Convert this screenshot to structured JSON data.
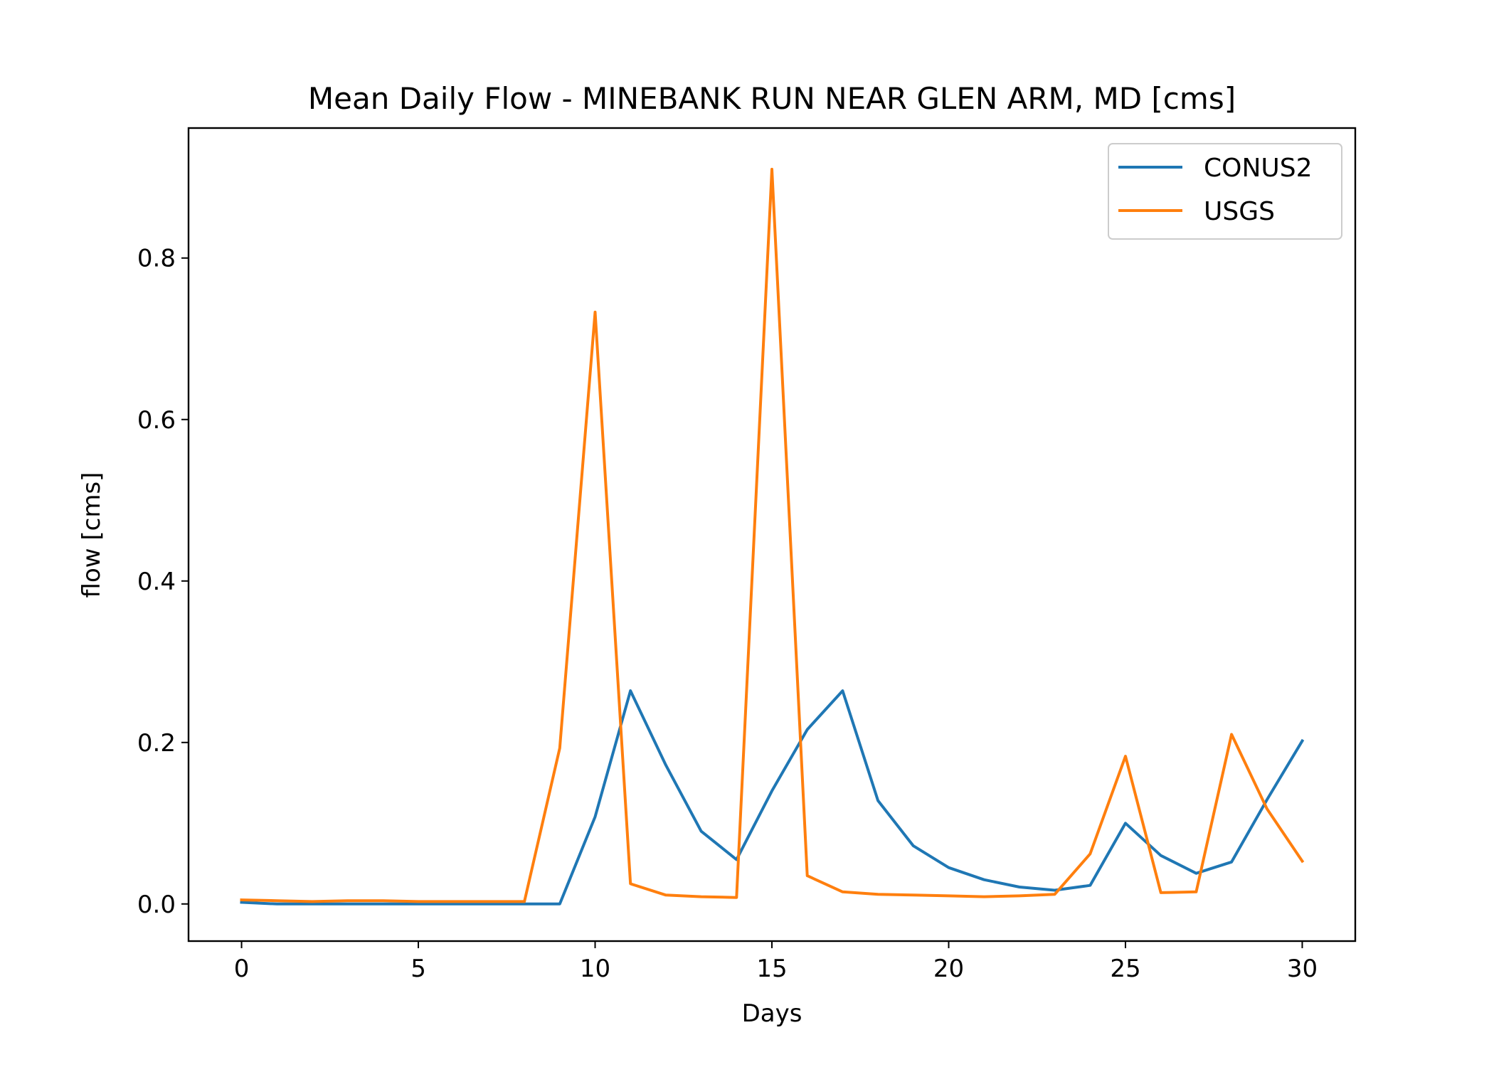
{
  "chart_data": {
    "type": "line",
    "title": "Mean Daily Flow - MINEBANK RUN NEAR GLEN ARM, MD [cms]",
    "xlabel": "Days",
    "ylabel": "flow [cms]",
    "xlim": [
      -1.5,
      31.5
    ],
    "ylim": [
      -0.046,
      0.961
    ],
    "xticks": [
      0,
      5,
      10,
      15,
      20,
      25,
      30
    ],
    "yticks": [
      0.0,
      0.2,
      0.4,
      0.6,
      0.8
    ],
    "ytick_labels": [
      "0.0",
      "0.2",
      "0.4",
      "0.6",
      "0.8"
    ],
    "legend_position": "top-right",
    "grid": false,
    "x": [
      0,
      1,
      2,
      3,
      4,
      5,
      6,
      7,
      8,
      9,
      10,
      11,
      12,
      13,
      14,
      15,
      16,
      17,
      18,
      19,
      20,
      21,
      22,
      23,
      24,
      25,
      26,
      27,
      28,
      29,
      30
    ],
    "series": [
      {
        "name": "CONUS2",
        "color": "#1f77b4",
        "values": [
          0.002,
          0.0,
          0.0,
          0.0,
          0.0,
          0.0,
          0.0,
          0.0,
          0.0,
          0.0,
          0.108,
          0.264,
          0.172,
          0.09,
          0.055,
          0.14,
          0.216,
          0.264,
          0.128,
          0.072,
          0.045,
          0.03,
          0.021,
          0.017,
          0.023,
          0.1,
          0.06,
          0.038,
          0.052,
          0.129,
          0.202
        ]
      },
      {
        "name": "USGS",
        "color": "#ff7f0e",
        "values": [
          0.005,
          0.004,
          0.003,
          0.004,
          0.004,
          0.003,
          0.003,
          0.003,
          0.003,
          0.193,
          0.733,
          0.025,
          0.011,
          0.009,
          0.008,
          0.91,
          0.035,
          0.015,
          0.012,
          0.011,
          0.01,
          0.009,
          0.01,
          0.012,
          0.062,
          0.183,
          0.014,
          0.015,
          0.21,
          0.118,
          0.053
        ]
      }
    ]
  }
}
